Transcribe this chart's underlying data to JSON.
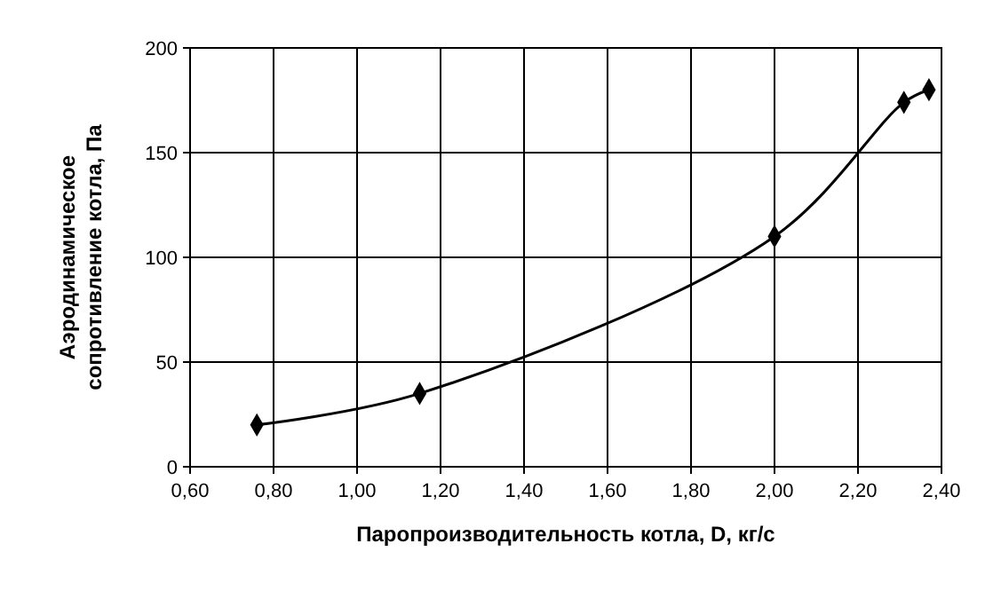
{
  "chart_data": {
    "type": "line",
    "xlabel": "Паропроизводительность котла, D, кг/с",
    "ylabel": "Аэродинамическое сопротивление котла, Па",
    "x": [
      0.76,
      1.15,
      2.0,
      2.31,
      2.37
    ],
    "series": [
      {
        "color": "#000000",
        "values": [
          20,
          35,
          110,
          174,
          180
        ]
      }
    ],
    "xlim": [
      0.6,
      2.4
    ],
    "xticks": [
      {
        "value": 0.6,
        "label": "0,60"
      },
      {
        "value": 0.8,
        "label": "0,80"
      },
      {
        "value": 1.0,
        "label": "1,00"
      },
      {
        "value": 1.2,
        "label": "1,20"
      },
      {
        "value": 1.4,
        "label": "1,40"
      },
      {
        "value": 1.6,
        "label": "1,60"
      },
      {
        "value": 1.8,
        "label": "1,80"
      },
      {
        "value": 2.0,
        "label": "2,00"
      },
      {
        "value": 2.2,
        "label": "2,20"
      },
      {
        "value": 2.4,
        "label": "2,40"
      }
    ],
    "ylim": [
      0,
      200
    ],
    "yticks": [
      0,
      50,
      100,
      150,
      200
    ],
    "grid": true,
    "marker": "diamond",
    "line_style": "solid"
  }
}
